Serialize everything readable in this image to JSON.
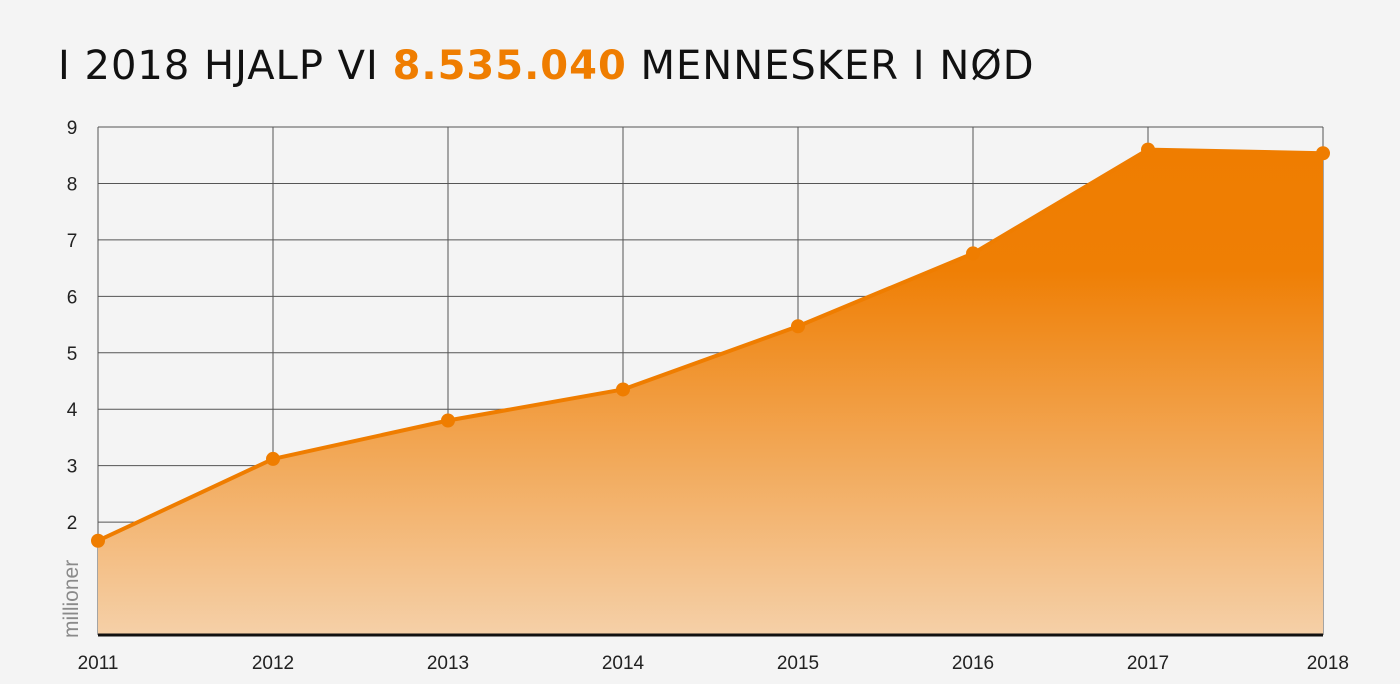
{
  "title": {
    "before": "I 2018 HJALP VI",
    "highlight": "8.535.040",
    "after": "MENNESKER I NØD"
  },
  "colors": {
    "accent": "#ef7d00",
    "background": "#f4f4f4",
    "grid": "#555555",
    "text": "#111111"
  },
  "chart_data": {
    "type": "area",
    "title": "I 2018 HJALP VI 8.535.040 MENNESKER I NØD",
    "xlabel": "",
    "ylabel": "millioner",
    "x": [
      "2011",
      "2012",
      "2013",
      "2014",
      "2015",
      "2016",
      "2017",
      "2018"
    ],
    "series": [
      {
        "values": [
          1.67,
          3.12,
          3.8,
          4.35,
          5.47,
          6.76,
          8.6,
          8.535
        ]
      }
    ],
    "ylim": [
      0,
      9
    ],
    "yticks": [
      2,
      3,
      4,
      5,
      6,
      7,
      8,
      9
    ],
    "grid": true,
    "legend": "none",
    "marker": "circle",
    "fill": "vertical gradient from light to dark orange"
  }
}
